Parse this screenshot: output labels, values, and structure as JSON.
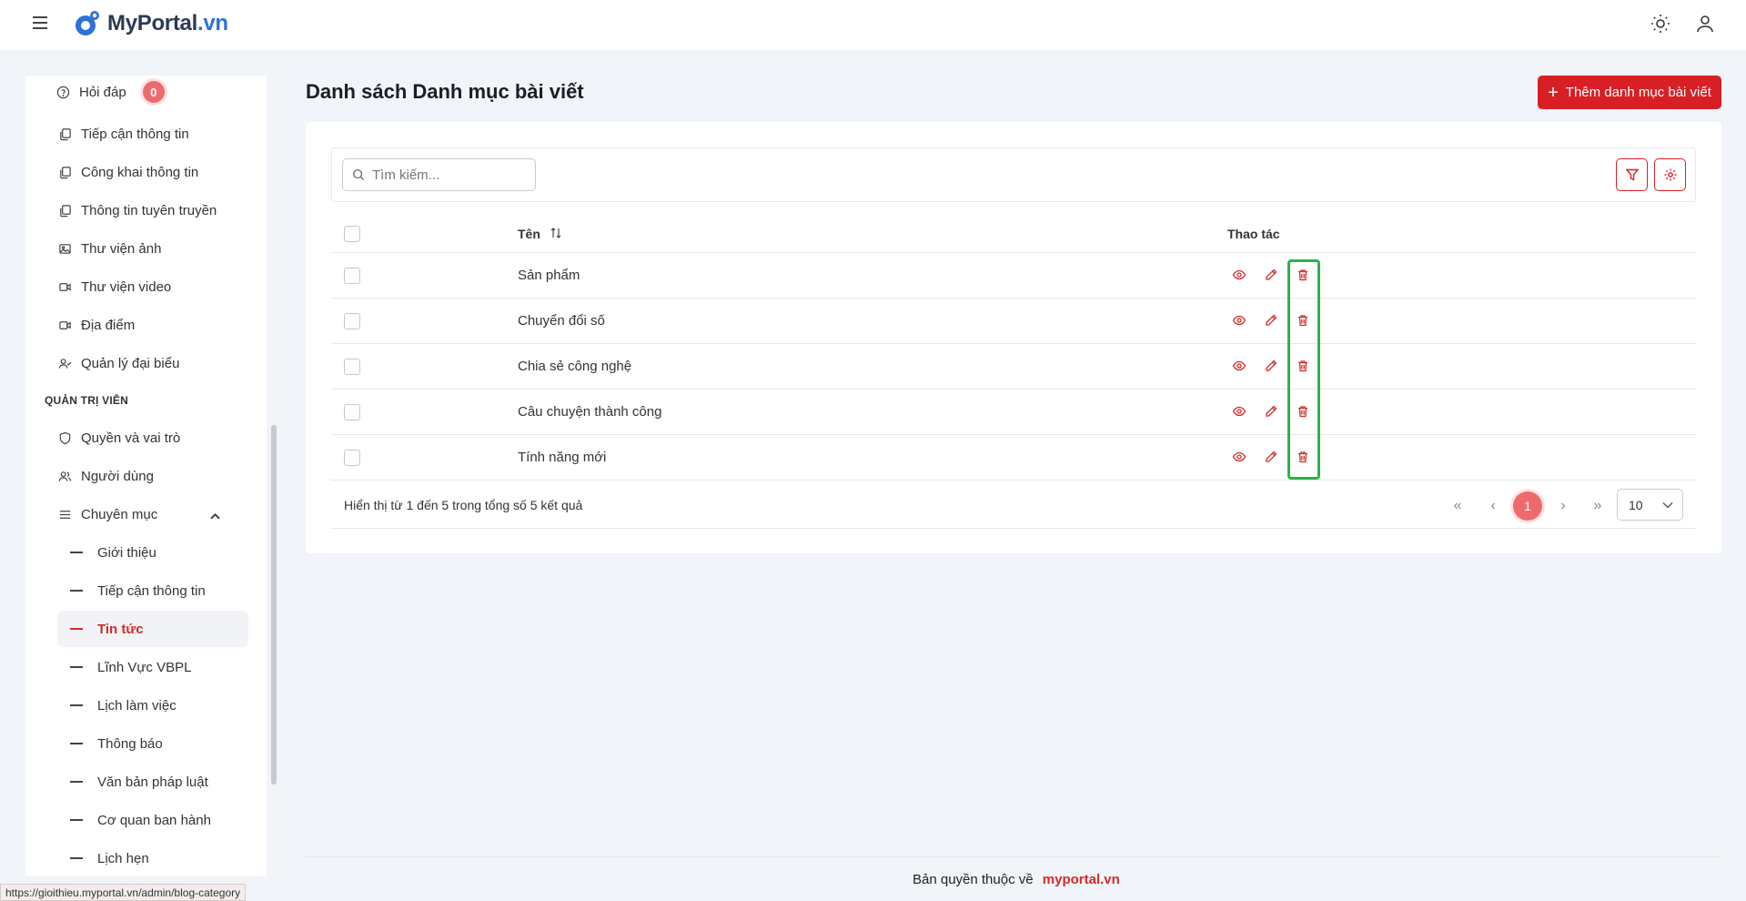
{
  "app": {
    "logo_name": "MyPortal",
    "logo_tld": ".vn",
    "colors": {
      "brand": "#2d72d9",
      "accent": "#d81f26",
      "badge": "#ef6b6b",
      "highlight": "#2db24a"
    }
  },
  "sidebar": {
    "top_items": [
      {
        "label": "Hỏi đáp",
        "icon": "help-circle-icon",
        "badge": "0"
      },
      {
        "label": "Tiếp cận thông tin",
        "icon": "copy-icon"
      },
      {
        "label": "Công khai thông tin",
        "icon": "copy-icon"
      },
      {
        "label": "Thông tin tuyên truyền",
        "icon": "copy-icon"
      },
      {
        "label": "Thư viện ảnh",
        "icon": "image-icon"
      },
      {
        "label": "Thư viện video",
        "icon": "video-icon"
      },
      {
        "label": "Địa điểm",
        "icon": "video-icon"
      },
      {
        "label": "Quản lý đại biểu",
        "icon": "user-check-icon"
      }
    ],
    "section_admin": "QUẢN TRỊ VIÊN",
    "admin_items": [
      {
        "label": "Quyền và vai trò",
        "icon": "shield-icon"
      },
      {
        "label": "Người dùng",
        "icon": "users-icon"
      },
      {
        "label": "Chuyên mục",
        "icon": "list-icon"
      }
    ],
    "sub_items": [
      "Giới thiệu",
      "Tiếp cận thông tin",
      "Tin tức",
      "Lĩnh Vực VBPL",
      "Lịch làm việc",
      "Thông báo",
      "Văn bản pháp luật",
      "Cơ quan ban hành",
      "Lịch hẹn"
    ],
    "active_sub": "Tin tức"
  },
  "main": {
    "title": "Danh sách Danh mục bài viết",
    "add_button": "Thêm danh mục bài viết",
    "search_placeholder": "Tìm kiếm...",
    "columns": {
      "name": "Tên",
      "actions": "Thao tác"
    },
    "rows": [
      "Sản phẩm",
      "Chuyển đổi số",
      "Chia sẻ công nghệ",
      "Câu chuyện thành công",
      "Tính năng mới"
    ],
    "summary": "Hiển thị từ 1 đến 5 trong tổng số 5 kết quả",
    "current_page": "1",
    "per_page": "10"
  },
  "footer": {
    "copyright_prefix": "Bản quyền thuộc về",
    "copyright_link": "myportal.vn"
  },
  "status_url": "https://gioithieu.myportal.vn/admin/blog-category"
}
